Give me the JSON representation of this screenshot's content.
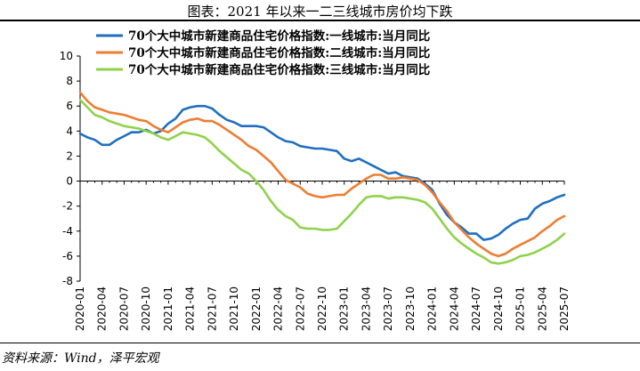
{
  "title": "图表：2021 年以来一二三线城市房价均下跌",
  "source": "资料来源：Wind，泽平宏观",
  "chart_data": {
    "type": "line",
    "title": "图表：2021 年以来一二三线城市房价均下跌",
    "xlabel": "",
    "ylabel": "",
    "ylim": [
      -8,
      10
    ],
    "yticks": [
      -8,
      -6,
      -4,
      -2,
      0,
      2,
      4,
      6,
      8,
      10
    ],
    "xticks": [
      "2020-01",
      "2020-04",
      "2020-07",
      "2020-10",
      "2021-01",
      "2021-04",
      "2021-07",
      "2021-10",
      "2022-01",
      "2022-04",
      "2022-07",
      "2022-10",
      "2023-01",
      "2023-04",
      "2023-07",
      "2023-10",
      "2024-01",
      "2024-04",
      "2024-07",
      "2024-10",
      "2025-01",
      "2025-04",
      "2025-07"
    ],
    "legend_position": "top",
    "grid": false,
    "x": [
      "2020-01",
      "2020-02",
      "2020-03",
      "2020-04",
      "2020-05",
      "2020-06",
      "2020-07",
      "2020-08",
      "2020-09",
      "2020-10",
      "2020-11",
      "2020-12",
      "2021-01",
      "2021-02",
      "2021-03",
      "2021-04",
      "2021-05",
      "2021-06",
      "2021-07",
      "2021-08",
      "2021-09",
      "2021-10",
      "2021-11",
      "2021-12",
      "2022-01",
      "2022-02",
      "2022-03",
      "2022-04",
      "2022-05",
      "2022-06",
      "2022-07",
      "2022-08",
      "2022-09",
      "2022-10",
      "2022-11",
      "2022-12",
      "2023-01",
      "2023-02",
      "2023-03",
      "2023-04",
      "2023-05",
      "2023-06",
      "2023-07",
      "2023-08",
      "2023-09",
      "2023-10",
      "2023-11",
      "2023-12",
      "2024-01",
      "2024-02",
      "2024-03",
      "2024-04",
      "2024-05",
      "2024-06",
      "2024-07",
      "2024-08",
      "2024-09",
      "2024-10",
      "2024-11",
      "2024-12",
      "2025-01",
      "2025-02",
      "2025-03",
      "2025-04",
      "2025-05",
      "2025-06",
      "2025-07"
    ],
    "series": [
      {
        "name": "70个大中城市新建商品住宅价格指数:一线城市:当月同比",
        "color": "#1f6fbf",
        "values": [
          3.8,
          3.5,
          3.3,
          2.9,
          2.9,
          3.3,
          3.6,
          3.9,
          3.9,
          4.1,
          3.8,
          4.0,
          4.6,
          5.0,
          5.7,
          5.9,
          6.0,
          6.0,
          5.8,
          5.3,
          4.9,
          4.7,
          4.4,
          4.4,
          4.4,
          4.3,
          3.9,
          3.5,
          3.2,
          3.1,
          2.8,
          2.7,
          2.6,
          2.6,
          2.5,
          2.4,
          1.8,
          1.6,
          1.8,
          1.5,
          1.2,
          0.9,
          0.6,
          0.7,
          0.4,
          0.3,
          0.2,
          -0.2,
          -0.7,
          -1.8,
          -2.7,
          -3.3,
          -3.7,
          -4.2,
          -4.2,
          -4.7,
          -4.6,
          -4.3,
          -3.8,
          -3.4,
          -3.1,
          -3.0,
          -2.2,
          -1.8,
          -1.6,
          -1.3,
          -1.1
        ]
      },
      {
        "name": "70个大中城市新建商品住宅价格指数:二线城市:当月同比",
        "color": "#ed7d31",
        "values": [
          7.1,
          6.4,
          5.9,
          5.7,
          5.5,
          5.4,
          5.3,
          5.1,
          4.9,
          4.8,
          4.4,
          4.1,
          3.9,
          4.3,
          4.7,
          4.9,
          5.0,
          4.8,
          4.8,
          4.5,
          4.1,
          3.7,
          3.3,
          2.8,
          2.5,
          2.0,
          1.5,
          0.8,
          0.1,
          -0.2,
          -0.5,
          -1.0,
          -1.2,
          -1.3,
          -1.2,
          -1.1,
          -1.1,
          -0.6,
          -0.2,
          0.2,
          0.5,
          0.5,
          0.2,
          0.2,
          0.3,
          0.2,
          0.1,
          -0.3,
          -0.9,
          -1.7,
          -2.4,
          -3.3,
          -3.9,
          -4.5,
          -5.0,
          -5.4,
          -5.8,
          -6.0,
          -5.8,
          -5.4,
          -5.1,
          -4.8,
          -4.5,
          -4.0,
          -3.6,
          -3.1,
          -2.8
        ]
      },
      {
        "name": "70个大中城市新建商品住宅价格指数:三线城市:当月同比",
        "color": "#8fd24a",
        "values": [
          6.5,
          5.9,
          5.3,
          5.1,
          4.8,
          4.6,
          4.4,
          4.3,
          4.2,
          4.0,
          3.8,
          3.5,
          3.3,
          3.6,
          3.9,
          3.8,
          3.7,
          3.5,
          3.0,
          2.4,
          1.9,
          1.4,
          0.9,
          0.6,
          0.0,
          -0.7,
          -1.6,
          -2.3,
          -2.8,
          -3.1,
          -3.7,
          -3.8,
          -3.8,
          -3.9,
          -3.9,
          -3.8,
          -3.2,
          -2.6,
          -1.9,
          -1.3,
          -1.2,
          -1.2,
          -1.4,
          -1.3,
          -1.3,
          -1.4,
          -1.5,
          -1.7,
          -2.2,
          -3.0,
          -3.8,
          -4.5,
          -5.0,
          -5.4,
          -5.8,
          -6.1,
          -6.5,
          -6.6,
          -6.5,
          -6.3,
          -6.0,
          -5.9,
          -5.7,
          -5.4,
          -5.1,
          -4.7,
          -4.2
        ]
      }
    ]
  }
}
